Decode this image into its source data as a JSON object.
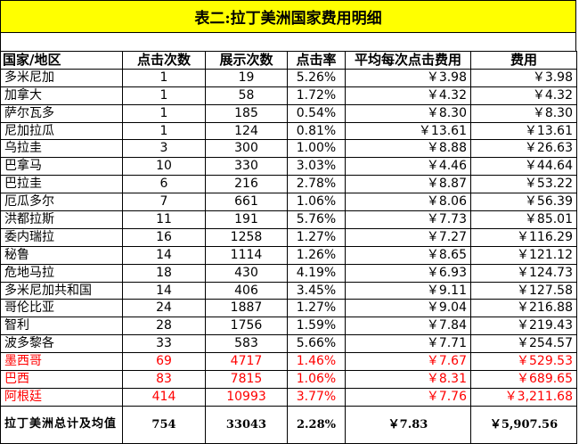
{
  "title": "表二:拉丁美洲国家费用明细",
  "headers": [
    "国家/地区",
    "点击次数",
    "展示次数",
    "点击率",
    "平均每次点击费用",
    "费用"
  ],
  "rows": [
    {
      "country": "多米尼加",
      "clicks": "1",
      "impressions": "19",
      "ctr": "5.26%",
      "avg_cpc": "￥3.98",
      "cost": "￥3.98",
      "highlight": false
    },
    {
      "country": "加拿大",
      "clicks": "1",
      "impressions": "58",
      "ctr": "1.72%",
      "avg_cpc": "￥4.32",
      "cost": "￥4.32",
      "highlight": false
    },
    {
      "country": "萨尔瓦多",
      "clicks": "1",
      "impressions": "185",
      "ctr": "0.54%",
      "avg_cpc": "￥8.30",
      "cost": "￥8.30",
      "highlight": false
    },
    {
      "country": "尼加拉瓜",
      "clicks": "1",
      "impressions": "124",
      "ctr": "0.81%",
      "avg_cpc": "￥13.61",
      "cost": "￥13.61",
      "highlight": false
    },
    {
      "country": "乌拉圭",
      "clicks": "3",
      "impressions": "300",
      "ctr": "1.00%",
      "avg_cpc": "￥8.88",
      "cost": "￥26.63",
      "highlight": false
    },
    {
      "country": "巴拿马",
      "clicks": "10",
      "impressions": "330",
      "ctr": "3.03%",
      "avg_cpc": "￥4.46",
      "cost": "￥44.64",
      "highlight": false
    },
    {
      "country": "巴拉圭",
      "clicks": "6",
      "impressions": "216",
      "ctr": "2.78%",
      "avg_cpc": "￥8.87",
      "cost": "￥53.22",
      "highlight": false
    },
    {
      "country": "厄瓜多尔",
      "clicks": "7",
      "impressions": "661",
      "ctr": "1.06%",
      "avg_cpc": "￥8.06",
      "cost": "￥56.39",
      "highlight": false
    },
    {
      "country": "洪都拉斯",
      "clicks": "11",
      "impressions": "191",
      "ctr": "5.76%",
      "avg_cpc": "￥7.73",
      "cost": "￥85.01",
      "highlight": false
    },
    {
      "country": "委内瑞拉",
      "clicks": "16",
      "impressions": "1258",
      "ctr": "1.27%",
      "avg_cpc": "￥7.27",
      "cost": "￥116.29",
      "highlight": false
    },
    {
      "country": "秘鲁",
      "clicks": "14",
      "impressions": "1114",
      "ctr": "1.26%",
      "avg_cpc": "￥8.65",
      "cost": "￥121.12",
      "highlight": false
    },
    {
      "country": "危地马拉",
      "clicks": "18",
      "impressions": "430",
      "ctr": "4.19%",
      "avg_cpc": "￥6.93",
      "cost": "￥124.73",
      "highlight": false
    },
    {
      "country": "多米尼加共和国",
      "clicks": "14",
      "impressions": "406",
      "ctr": "3.45%",
      "avg_cpc": "￥9.11",
      "cost": "￥127.58",
      "highlight": false
    },
    {
      "country": "哥伦比亚",
      "clicks": "24",
      "impressions": "1887",
      "ctr": "1.27%",
      "avg_cpc": "￥9.04",
      "cost": "￥216.88",
      "highlight": false
    },
    {
      "country": "智利",
      "clicks": "28",
      "impressions": "1756",
      "ctr": "1.59%",
      "avg_cpc": "￥7.84",
      "cost": "￥219.43",
      "highlight": false
    },
    {
      "country": "波多黎各",
      "clicks": "33",
      "impressions": "583",
      "ctr": "5.66%",
      "avg_cpc": "￥7.71",
      "cost": "￥254.57",
      "highlight": false
    },
    {
      "country": "墨西哥",
      "clicks": "69",
      "impressions": "4717",
      "ctr": "1.46%",
      "avg_cpc": "￥7.67",
      "cost": "￥529.53",
      "highlight": true
    },
    {
      "country": "巴西",
      "clicks": "83",
      "impressions": "7815",
      "ctr": "1.06%",
      "avg_cpc": "￥8.31",
      "cost": "￥689.65",
      "highlight": true
    },
    {
      "country": "阿根廷",
      "clicks": "414",
      "impressions": "10993",
      "ctr": "3.77%",
      "avg_cpc": "￥7.76",
      "cost": "￥3,211.68",
      "highlight": true
    }
  ],
  "total": {
    "label": "拉丁美洲总计及均值",
    "clicks": "754",
    "impressions": "33043",
    "ctr": "2.28%",
    "avg_cpc": "￥7.83",
    "cost": "￥5,907.56"
  },
  "colors": {
    "title_bg": "#ffff00",
    "highlight_text": "#ff0000"
  }
}
